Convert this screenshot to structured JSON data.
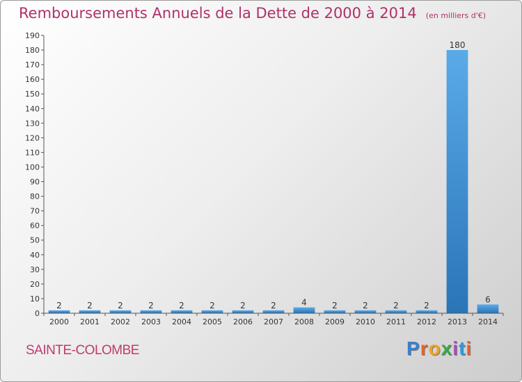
{
  "header": {
    "title": "Remboursements Annuels de la Dette de 2000 à 2014",
    "subtitle": "(en milliers d'€)"
  },
  "commune": "SAINTE-COLOMBE",
  "logo": {
    "letters": [
      "P",
      "r",
      "o",
      "x",
      "i",
      "t",
      "i"
    ]
  },
  "colors": {
    "title": "#b0306a",
    "bar_light": "#5aaae8",
    "bar_dark": "#2a74b8"
  },
  "chart_data": {
    "type": "bar",
    "categories": [
      "2000",
      "2001",
      "2002",
      "2003",
      "2004",
      "2005",
      "2006",
      "2007",
      "2008",
      "2009",
      "2010",
      "2011",
      "2012",
      "2013",
      "2014"
    ],
    "values": [
      2,
      2,
      2,
      2,
      2,
      2,
      2,
      2,
      4,
      2,
      2,
      2,
      2,
      180,
      6
    ],
    "data_labels": [
      "2",
      "2",
      "2",
      "2",
      "2",
      "2",
      "2",
      "2",
      "4",
      "2",
      "2",
      "2",
      "2",
      "180",
      "6"
    ],
    "yticks": [
      "0",
      "10",
      "20",
      "30",
      "40",
      "50",
      "60",
      "70",
      "80",
      "90",
      "100",
      "110",
      "120",
      "130",
      "140",
      "150",
      "160",
      "170",
      "180",
      "190"
    ],
    "ylim": [
      0,
      190
    ],
    "grid": false,
    "title": "Remboursements Annuels de la Dette de 2000 à 2014",
    "xlabel": "",
    "ylabel": ""
  }
}
